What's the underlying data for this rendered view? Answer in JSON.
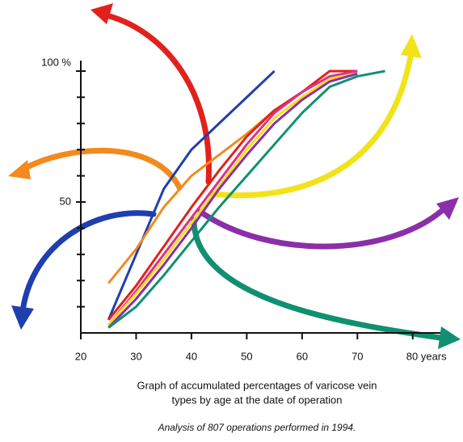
{
  "chart_data": {
    "type": "line",
    "x": [
      25,
      30,
      35,
      40,
      45,
      50,
      55,
      60,
      65,
      70,
      75
    ],
    "series": [
      {
        "color": "#1f3fae",
        "values": [
          5,
          30,
          55,
          70,
          80,
          90,
          100,
          null,
          null,
          null,
          null
        ]
      },
      {
        "color": "#f28a1e",
        "values": [
          19,
          32,
          48,
          60,
          68,
          76,
          85,
          null,
          null,
          null,
          null
        ]
      },
      {
        "color": "#e3211c",
        "values": [
          5,
          18,
          33,
          48,
          62,
          75,
          85,
          92,
          100,
          100,
          null
        ]
      },
      {
        "color": "#e0308a",
        "values": [
          3,
          16,
          30,
          44,
          58,
          72,
          84,
          92,
          98,
          100,
          null
        ]
      },
      {
        "color": "#f2e21a",
        "values": [
          3,
          15,
          28,
          42,
          56,
          70,
          82,
          90,
          97,
          99,
          null
        ]
      },
      {
        "color": "#8b2fa8",
        "values": [
          2,
          13,
          26,
          40,
          55,
          68,
          80,
          89,
          96,
          99,
          null
        ]
      },
      {
        "color": "#109070",
        "values": [
          2,
          10,
          22,
          35,
          48,
          60,
          72,
          84,
          94,
          98,
          100
        ]
      }
    ],
    "xlim": [
      20,
      85
    ],
    "ylim": [
      0,
      104
    ],
    "xticks": [
      20,
      30,
      40,
      50,
      60,
      70,
      {
        "value": 80,
        "label": "80 years"
      }
    ],
    "yticks": [
      {
        "value": 100,
        "label": "100 %"
      },
      50
    ],
    "yminorticks": [
      10,
      20,
      30,
      40,
      60,
      70,
      80,
      90
    ],
    "caption_lines": [
      "Graph of accumulated percentages of varicose vein",
      "types by age at the date of operation"
    ],
    "subcaption": "Analysis of 807 operations performed in 1994."
  }
}
